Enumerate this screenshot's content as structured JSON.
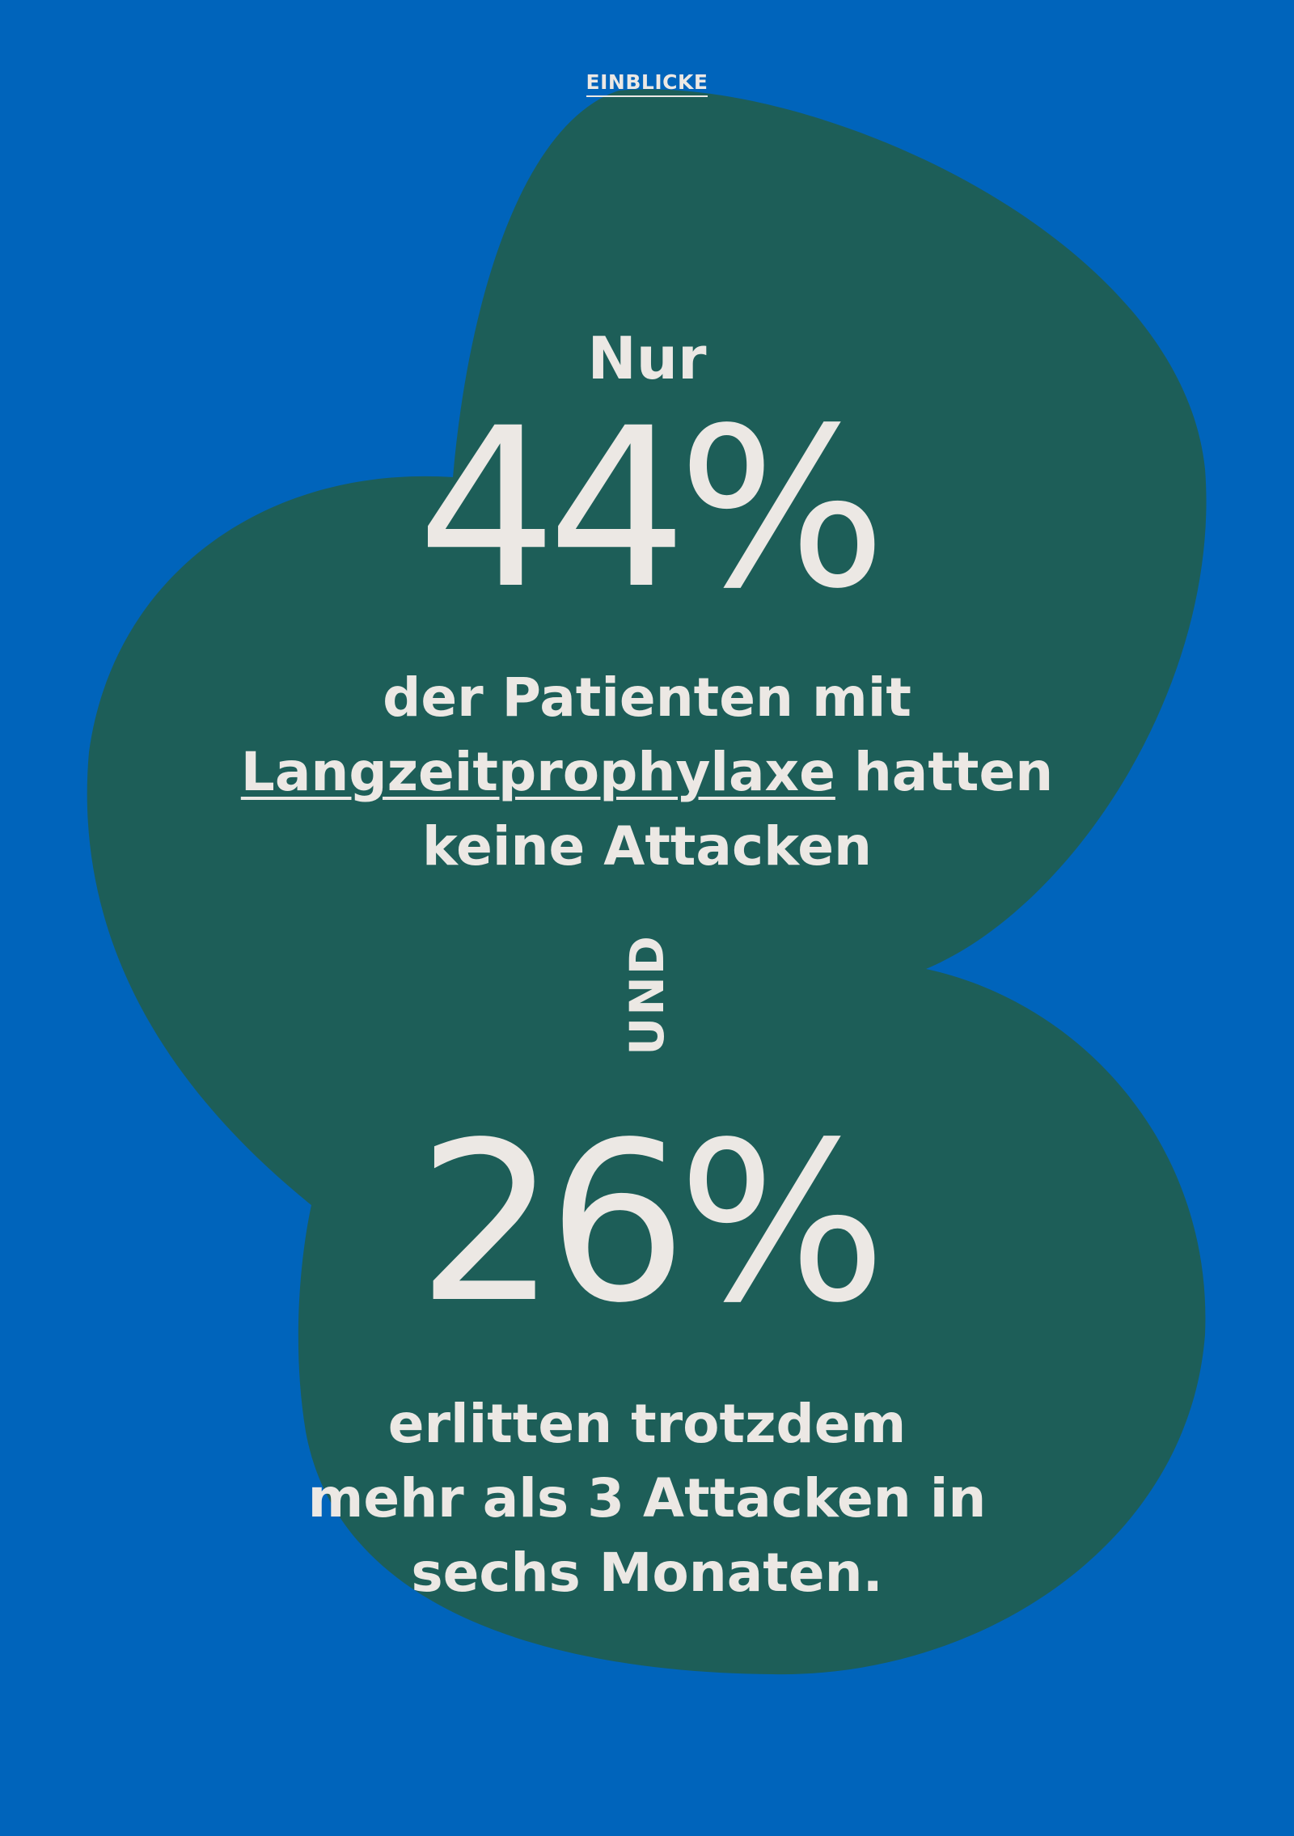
{
  "nav": {
    "label": "EINBLICKE"
  },
  "stat1": {
    "prefix": "Nur",
    "value": "44%",
    "line1": "der Patienten mit",
    "link": "Langzeitprophylaxe",
    "line2_rest": " hatten",
    "line3": "keine Attacken"
  },
  "connector": "UND",
  "stat2": {
    "value": "26%",
    "line1": "erlitten trotzdem",
    "line2": "mehr als 3 Attacken in",
    "line3": "sechs Monaten."
  },
  "colors": {
    "background": "#0064BB",
    "blob": "#1D5E58",
    "text": "#ECE8E4"
  }
}
